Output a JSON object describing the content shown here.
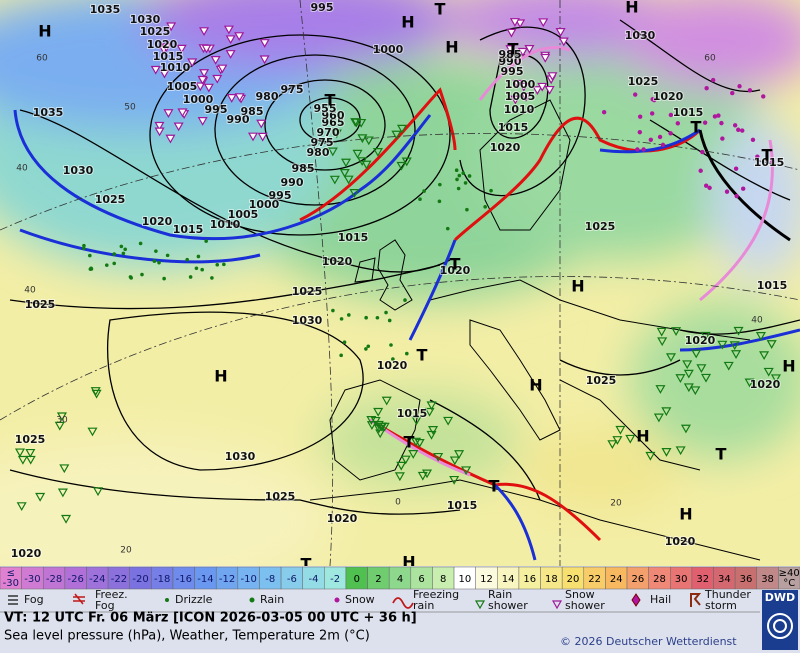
{
  "map": {
    "isobar_labels": [
      "1035",
      "1030",
      "1025",
      "1020",
      "1015",
      "1010",
      "1005",
      "1000",
      "995",
      "990",
      "985",
      "980",
      "975",
      "995",
      "1000",
      "1035",
      "1030",
      "1025",
      "1020",
      "1015",
      "1010",
      "1005",
      "1000",
      "995",
      "990",
      "985",
      "980",
      "975",
      "970",
      "965",
      "960",
      "955",
      "1015",
      "1020",
      "1025",
      "1030",
      "1025",
      "1025",
      "1030",
      "1025",
      "1020",
      "1015",
      "1020",
      "1015",
      "1020",
      "1020",
      "1015",
      "1010",
      "1005",
      "1000",
      "995",
      "990",
      "985",
      "1025",
      "1025",
      "1030",
      "1025",
      "1020",
      "1015",
      "1015",
      "1015",
      "1020",
      "1020",
      "1020",
      "1020"
    ],
    "temperature_labels": [
      "60",
      "50",
      "40",
      "40",
      "30",
      "20",
      "0",
      "20",
      "40",
      "60"
    ],
    "centers": [
      "H",
      "H",
      "H",
      "T",
      "H",
      "T",
      "T",
      "T",
      "T",
      "T",
      "H",
      "T",
      "H",
      "H",
      "T",
      "H",
      "T",
      "T",
      "H",
      "H",
      "T",
      "H"
    ]
  },
  "scale": {
    "low_label": [
      "≤",
      "-30"
    ],
    "values": [
      -30,
      -28,
      -26,
      -24,
      -22,
      -20,
      -18,
      -16,
      -14,
      -12,
      -10,
      -8,
      -6,
      -4,
      -2,
      0,
      2,
      4,
      6,
      8,
      10,
      12,
      14,
      16,
      18,
      20,
      22,
      24,
      26,
      28,
      30,
      32,
      34,
      36,
      38
    ],
    "high_label": [
      "≥40",
      "°C"
    ]
  },
  "legend": [
    {
      "lines": [
        "Fog"
      ]
    },
    {
      "lines": [
        "Freez.",
        "Fog"
      ]
    },
    {
      "lines": [
        "Drizzle"
      ]
    },
    {
      "lines": [
        "Rain"
      ]
    },
    {
      "lines": [
        "Snow"
      ]
    },
    {
      "lines": [
        "Freezing",
        "rain"
      ]
    },
    {
      "lines": [
        "Rain",
        "shower"
      ]
    },
    {
      "lines": [
        "Snow",
        "shower"
      ]
    },
    {
      "lines": [
        "Hail"
      ]
    },
    {
      "lines": [
        "Thunder",
        "storm"
      ]
    }
  ],
  "footer": {
    "valid_time": "VT: 12 UTC Fr.  06 März [ICON 2026-03-05  00 UTC + 36 h]",
    "subtitle": "Sea level pressure (hPa), Weather, Temperature 2m (°C)",
    "copyright": "© 2026 Deutscher Wetterdienst",
    "logo": "DWD"
  }
}
